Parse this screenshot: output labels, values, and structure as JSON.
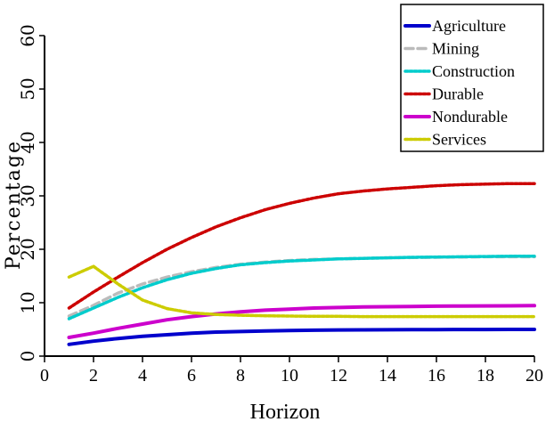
{
  "chart_data": {
    "type": "line",
    "title": "",
    "xlabel": "Horizon",
    "ylabel": "Percentage",
    "xlim": [
      0,
      20
    ],
    "ylim": [
      0,
      60
    ],
    "xticks": [
      "0",
      "2",
      "4",
      "6",
      "8",
      "10",
      "12",
      "14",
      "16",
      "18",
      "20"
    ],
    "yticks": [
      "0",
      "10",
      "20",
      "30",
      "40",
      "50",
      "60"
    ],
    "grid": false,
    "legend_position": "top-right",
    "x": [
      1,
      2,
      3,
      4,
      5,
      6,
      7,
      8,
      9,
      10,
      11,
      12,
      13,
      14,
      15,
      16,
      17,
      18,
      19,
      20
    ],
    "series": [
      {
        "name": "Agriculture",
        "color": "#0000cc",
        "style": "solid",
        "values": [
          2.2,
          2.8,
          3.3,
          3.7,
          4.0,
          4.3,
          4.5,
          4.6,
          4.7,
          4.8,
          4.85,
          4.9,
          4.92,
          4.94,
          4.96,
          4.97,
          4.98,
          4.99,
          5.0,
          5.0
        ]
      },
      {
        "name": "Mining",
        "color": "#bbbbbb",
        "style": "dashed",
        "values": [
          7.5,
          9.5,
          11.8,
          13.5,
          14.8,
          15.8,
          16.6,
          17.2,
          17.6,
          17.9,
          18.1,
          18.2,
          18.3,
          18.4,
          18.45,
          18.5,
          18.55,
          18.6,
          18.6,
          18.6
        ]
      },
      {
        "name": "Construction",
        "color": "#00cccc",
        "style": "dotted",
        "values": [
          7.0,
          9.0,
          11.0,
          12.8,
          14.3,
          15.5,
          16.4,
          17.1,
          17.5,
          17.8,
          18.0,
          18.2,
          18.3,
          18.4,
          18.5,
          18.55,
          18.6,
          18.65,
          18.7,
          18.7
        ]
      },
      {
        "name": "Durable",
        "color": "#cc0000",
        "style": "dotted",
        "values": [
          9.0,
          12.0,
          14.8,
          17.5,
          20.0,
          22.2,
          24.2,
          25.9,
          27.4,
          28.6,
          29.6,
          30.4,
          30.9,
          31.3,
          31.6,
          31.9,
          32.1,
          32.2,
          32.3,
          32.3
        ]
      },
      {
        "name": "Nondurable",
        "color": "#cc00cc",
        "style": "solid",
        "values": [
          3.5,
          4.3,
          5.2,
          6.0,
          6.8,
          7.4,
          7.9,
          8.3,
          8.6,
          8.8,
          9.0,
          9.1,
          9.2,
          9.25,
          9.3,
          9.35,
          9.38,
          9.4,
          9.42,
          9.45
        ]
      },
      {
        "name": "Services",
        "color": "#cccc00",
        "style": "dotted",
        "values": [
          14.8,
          16.8,
          13.5,
          10.5,
          8.9,
          8.1,
          7.8,
          7.65,
          7.55,
          7.5,
          7.45,
          7.45,
          7.4,
          7.4,
          7.4,
          7.4,
          7.4,
          7.4,
          7.4,
          7.4
        ]
      }
    ]
  }
}
